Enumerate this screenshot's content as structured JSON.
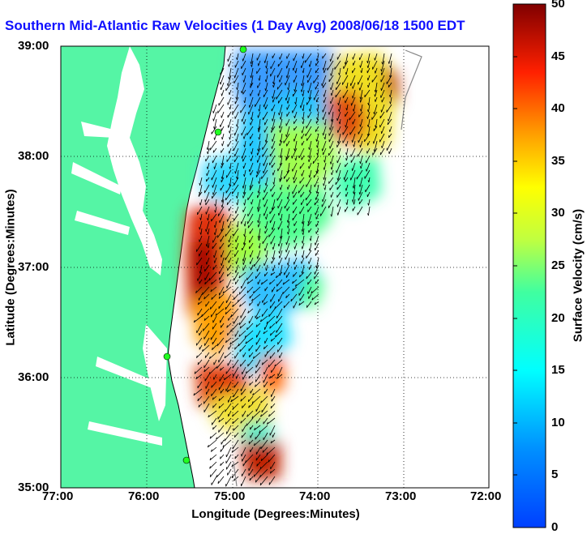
{
  "title": "Southern Mid-Atlantic Raw Velocities (1 Day Avg) 2008/06/18 1500 EDT",
  "xlabel": "Longitude (Degrees:Minutes)",
  "ylabel": "Latitude (Degrees:Minutes)",
  "colorbar": {
    "label": "Surface Velocity (cm/s)",
    "ticks": [
      "0",
      "5",
      "10",
      "15",
      "20",
      "25",
      "30",
      "35",
      "40",
      "45",
      "50"
    ],
    "range": [
      0,
      50
    ]
  },
  "x_ticks": [
    "77:00",
    "76:00",
    "75:00",
    "74:00",
    "73:00",
    "72:00"
  ],
  "y_ticks": [
    "39:00",
    "38:00",
    "37:00",
    "36:00",
    "35:00"
  ],
  "colors": {
    "land": "#55f5a5",
    "water": "#ffffff",
    "title": "#1010ff"
  },
  "chart_data": {
    "type": "heatmap",
    "title": "Southern Mid-Atlantic Raw Velocities (1 Day Avg) 2008/06/18 1500 EDT",
    "xlabel": "Longitude (Degrees:Minutes)",
    "ylabel": "Latitude (Degrees:Minutes)",
    "xlim": [
      -77,
      -72
    ],
    "ylim": [
      35,
      39
    ],
    "colorbar_range": [
      0,
      50
    ],
    "grid": true,
    "regions": [
      {
        "lon": -74.3,
        "lat": 38.6,
        "speed": 8
      },
      {
        "lon": -73.6,
        "lat": 38.4,
        "speed": 32
      },
      {
        "lon": -73.2,
        "lat": 38.8,
        "speed": 40
      },
      {
        "lon": -74.4,
        "lat": 37.9,
        "speed": 20
      },
      {
        "lon": -74.9,
        "lat": 38.3,
        "speed": 5
      },
      {
        "lon": -75.2,
        "lat": 37.4,
        "speed": 38
      },
      {
        "lon": -75.3,
        "lat": 36.9,
        "speed": 47
      },
      {
        "lon": -74.8,
        "lat": 37.5,
        "speed": 22
      },
      {
        "lon": -74.4,
        "lat": 37.2,
        "speed": 25
      },
      {
        "lon": -74.3,
        "lat": 36.7,
        "speed": 12
      },
      {
        "lon": -75.0,
        "lat": 36.5,
        "speed": 28
      },
      {
        "lon": -75.0,
        "lat": 35.9,
        "speed": 36
      },
      {
        "lon": -74.5,
        "lat": 36.1,
        "speed": 42
      },
      {
        "lon": -74.9,
        "lat": 35.6,
        "speed": 15
      },
      {
        "lon": -74.6,
        "lat": 35.2,
        "speed": 48
      }
    ]
  }
}
